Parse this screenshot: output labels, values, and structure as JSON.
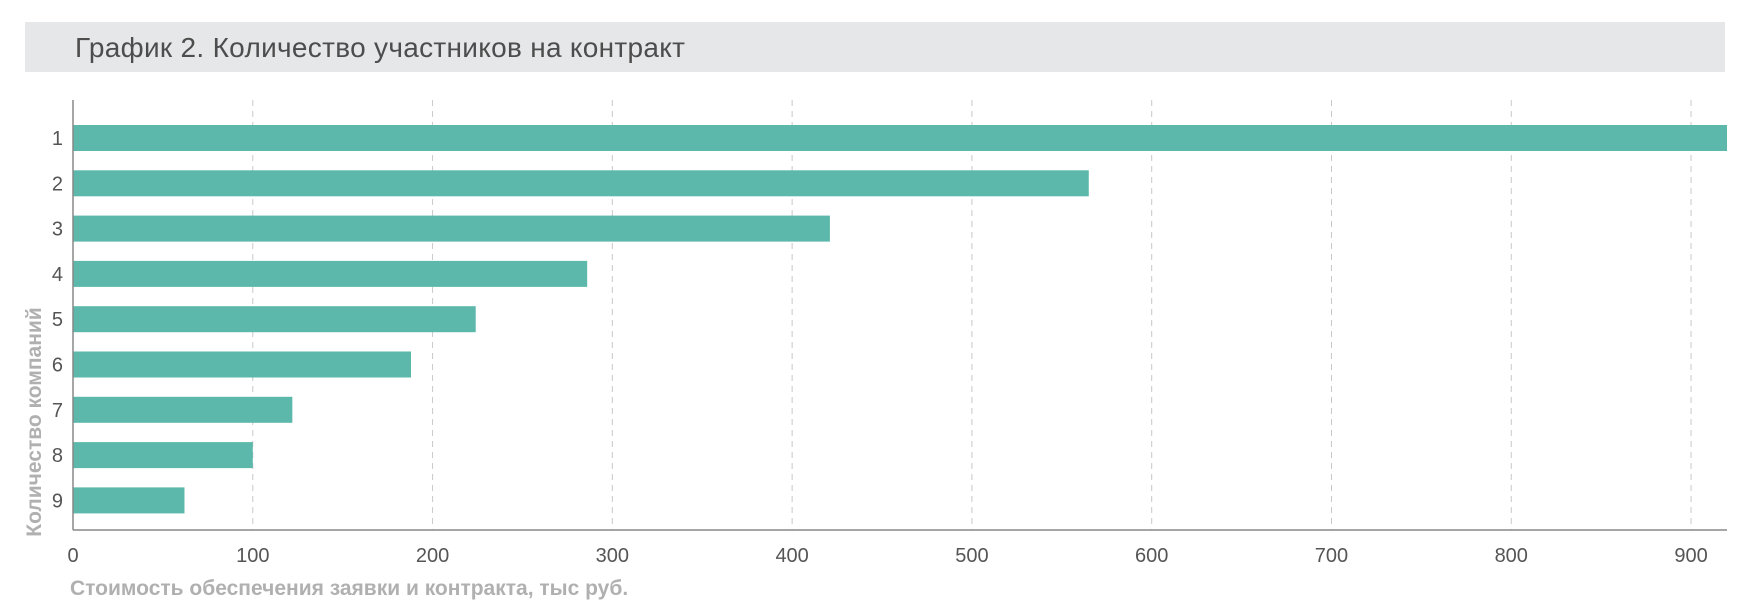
{
  "header": {
    "title": "График 2. Количество участников на контракт"
  },
  "chart_data": {
    "type": "bar",
    "orientation": "horizontal",
    "title": "График 2. Количество участников на контракт",
    "xlabel": "Стоимость обеспечения заявки и контракта, тыс руб.",
    "ylabel": "Количество компаний",
    "categories": [
      "1",
      "2",
      "3",
      "4",
      "5",
      "6",
      "7",
      "8",
      "9"
    ],
    "values": [
      920,
      565,
      421,
      286,
      224,
      188,
      122,
      100,
      62
    ],
    "xlim": [
      0,
      920
    ],
    "xticks": [
      0,
      100,
      200,
      300,
      400,
      500,
      600,
      700,
      800,
      900
    ],
    "grid": "vertical dashed",
    "legend": "none",
    "colors": {
      "bar": "#5bb8ab",
      "grid": "#c8c8c8",
      "axis": "#888888"
    }
  }
}
